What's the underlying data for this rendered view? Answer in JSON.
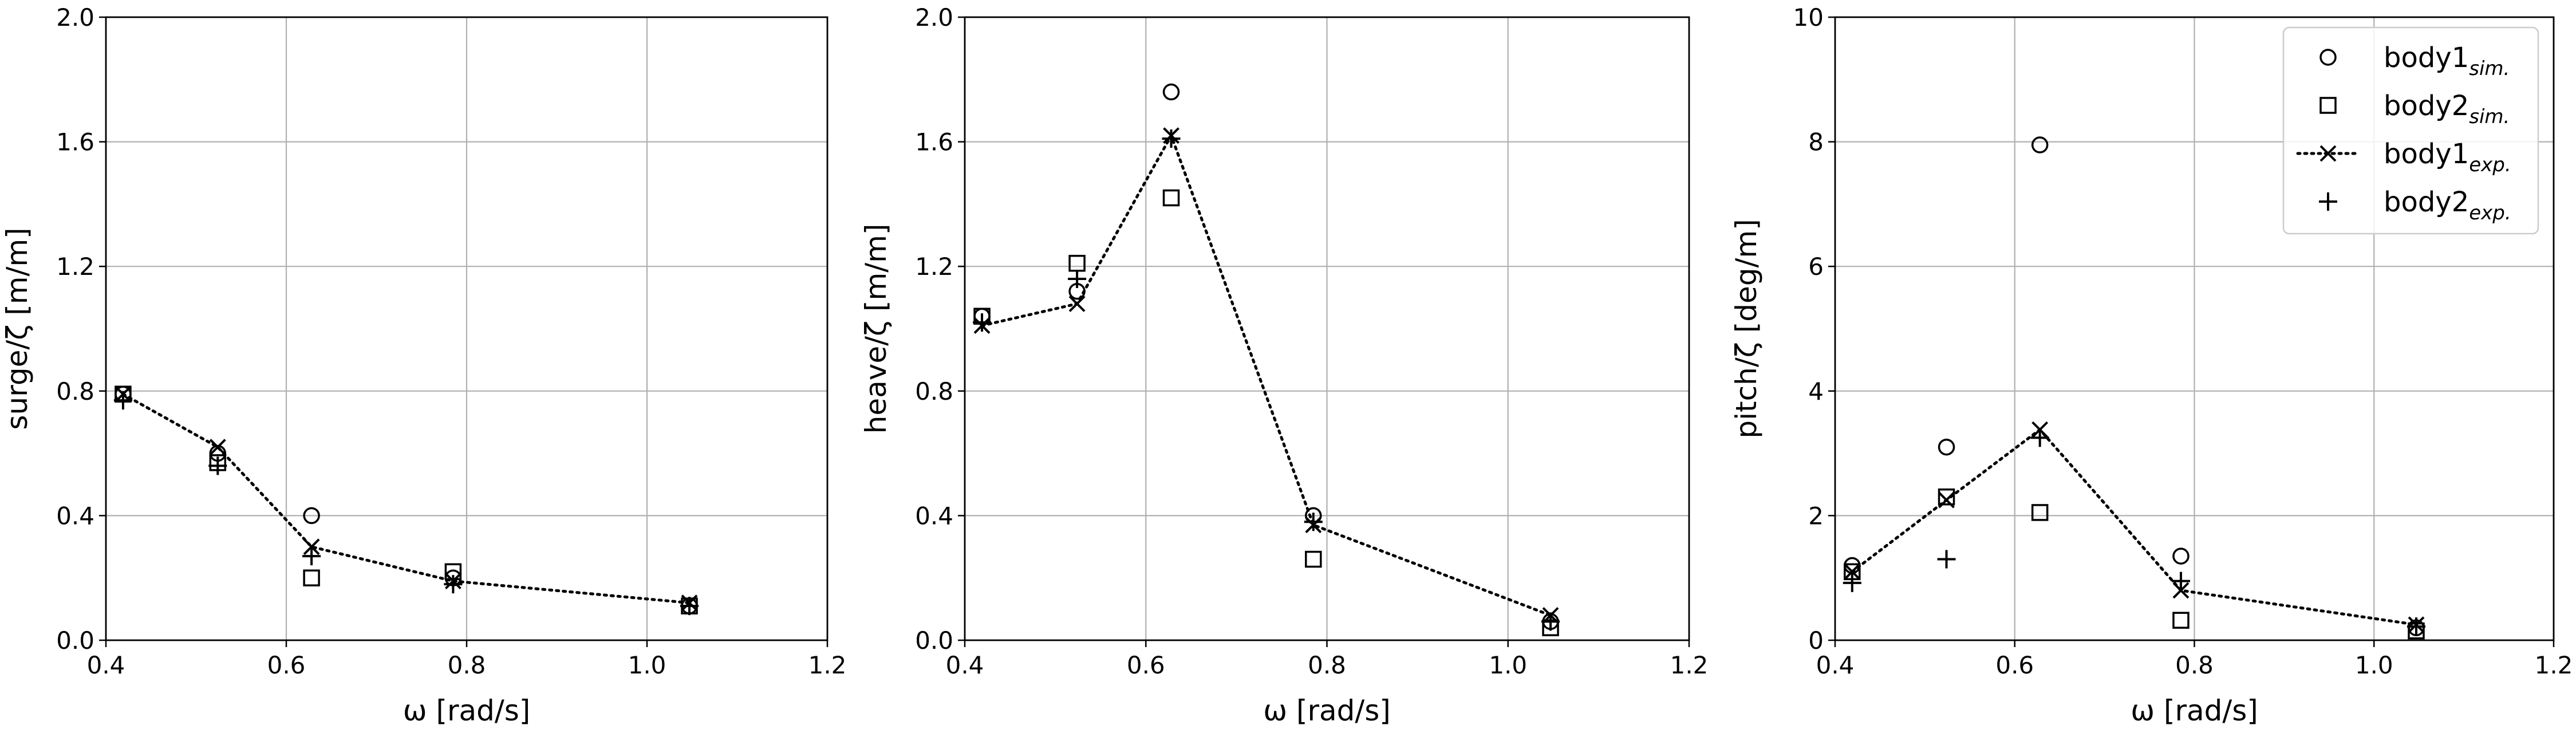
{
  "legend": {
    "location": "upper right of third panel",
    "entries": [
      {
        "base": "body1",
        "sub": "sim.",
        "marker": "circle",
        "line": false
      },
      {
        "base": "body2",
        "sub": "sim.",
        "marker": "square",
        "line": false
      },
      {
        "base": "body1",
        "sub": "exp.",
        "marker": "x",
        "line": true
      },
      {
        "base": "body2",
        "sub": "exp.",
        "marker": "plus",
        "line": false
      }
    ]
  },
  "chart_data": [
    {
      "type": "scatter",
      "xlabel": "ω [rad/s]",
      "ylabel": "surge/ζ [m/m]",
      "xlim": [
        0.4,
        1.2
      ],
      "ylim": [
        0.0,
        2.0
      ],
      "xticks": [
        "0.4",
        "0.6",
        "0.8",
        "1.0",
        "1.2"
      ],
      "yticks": [
        "0.0",
        "0.4",
        "0.8",
        "1.2",
        "1.6",
        "2.0"
      ],
      "grid": true,
      "x": [
        0.419,
        0.524,
        0.628,
        0.785,
        1.047
      ],
      "series": [
        {
          "name": "body1 sim.",
          "marker": "circle",
          "values": [
            0.79,
            0.6,
            0.4,
            0.2,
            0.11
          ]
        },
        {
          "name": "body2 sim.",
          "marker": "square",
          "values": [
            0.79,
            0.57,
            0.2,
            0.22,
            0.11
          ]
        },
        {
          "name": "body1 exp.",
          "marker": "x",
          "line": "dotted",
          "values": [
            0.79,
            0.62,
            0.3,
            0.19,
            0.12
          ]
        },
        {
          "name": "body2 exp.",
          "marker": "plus",
          "values": [
            0.77,
            0.56,
            0.27,
            0.18,
            0.11
          ]
        }
      ]
    },
    {
      "type": "scatter",
      "xlabel": "ω [rad/s]",
      "ylabel": "heave/ζ [m/m]",
      "xlim": [
        0.4,
        1.2
      ],
      "ylim": [
        0.0,
        2.0
      ],
      "xticks": [
        "0.4",
        "0.6",
        "0.8",
        "1.0",
        "1.2"
      ],
      "yticks": [
        "0.0",
        "0.4",
        "0.8",
        "1.2",
        "1.6",
        "2.0"
      ],
      "grid": true,
      "x": [
        0.419,
        0.524,
        0.628,
        0.785,
        1.047
      ],
      "series": [
        {
          "name": "body1 sim.",
          "marker": "circle",
          "values": [
            1.04,
            1.12,
            1.76,
            0.4,
            0.06
          ]
        },
        {
          "name": "body2 sim.",
          "marker": "square",
          "values": [
            1.04,
            1.21,
            1.42,
            0.26,
            0.04
          ]
        },
        {
          "name": "body1 exp.",
          "marker": "x",
          "line": "dotted",
          "values": [
            1.01,
            1.08,
            1.62,
            0.37,
            0.08
          ]
        },
        {
          "name": "body2 exp.",
          "marker": "plus",
          "values": [
            1.02,
            1.16,
            1.61,
            0.38,
            0.06
          ]
        }
      ]
    },
    {
      "type": "scatter",
      "xlabel": "ω [rad/s]",
      "ylabel": "pitch/ζ [deg/m]",
      "xlim": [
        0.4,
        1.2
      ],
      "ylim": [
        0,
        10
      ],
      "xticks": [
        "0.4",
        "0.6",
        "0.8",
        "1.0",
        "1.2"
      ],
      "yticks": [
        "0",
        "2",
        "4",
        "6",
        "8",
        "10"
      ],
      "grid": true,
      "x": [
        0.419,
        0.524,
        0.628,
        0.785,
        1.047
      ],
      "series": [
        {
          "name": "body1 sim.",
          "marker": "circle",
          "values": [
            1.2,
            3.1,
            7.95,
            1.35,
            0.2
          ]
        },
        {
          "name": "body2 sim.",
          "marker": "square",
          "values": [
            1.1,
            2.3,
            2.05,
            0.32,
            0.15
          ]
        },
        {
          "name": "body1 exp.",
          "marker": "x",
          "line": "dotted",
          "values": [
            1.1,
            2.25,
            3.38,
            0.8,
            0.25
          ]
        },
        {
          "name": "body2 exp.",
          "marker": "plus",
          "values": [
            0.92,
            1.3,
            3.25,
            0.95,
            0.22
          ]
        }
      ]
    }
  ]
}
